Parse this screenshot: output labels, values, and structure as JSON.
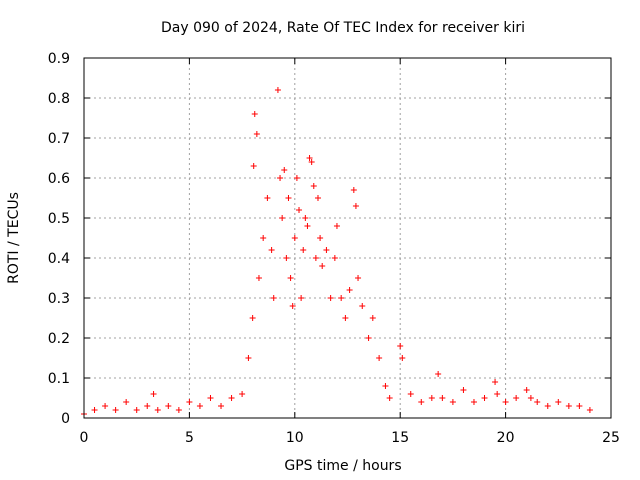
{
  "chart_data": {
    "type": "scatter",
    "title": "Day 090 of 2024, Rate Of TEC Index for receiver kiri",
    "xlabel": "GPS time / hours",
    "ylabel": "ROTI / TECUs",
    "xlim": [
      0,
      25
    ],
    "ylim": [
      0,
      0.9
    ],
    "x_ticks": [
      "0",
      "5",
      "10",
      "15",
      "20",
      "25"
    ],
    "y_ticks": [
      "0",
      "0.1",
      "0.2",
      "0.3",
      "0.4",
      "0.5",
      "0.6",
      "0.7",
      "0.8",
      "0.9"
    ],
    "grid": true,
    "marker": "+",
    "color": "#ff0000",
    "series": [
      {
        "x": [
          0.0,
          0.5,
          1.0,
          1.5,
          2.0,
          2.5,
          3.0,
          3.3,
          3.5,
          4.0,
          4.5,
          5.0,
          5.5,
          6.0,
          6.5,
          7.0,
          7.5,
          7.8,
          8.0,
          8.05,
          8.1,
          8.2,
          8.3,
          8.5,
          8.7,
          8.9,
          9.0,
          9.2,
          9.3,
          9.4,
          9.5,
          9.6,
          9.7,
          9.8,
          9.9,
          10.0,
          10.1,
          10.2,
          10.3,
          10.4,
          10.5,
          10.6,
          10.7,
          10.8,
          10.9,
          11.0,
          11.1,
          11.2,
          11.3,
          11.5,
          11.7,
          11.9,
          12.0,
          12.2,
          12.4,
          12.6,
          12.8,
          12.9,
          13.0,
          13.2,
          13.5,
          13.7,
          14.0,
          14.3,
          14.5,
          15.0,
          15.1,
          15.5,
          16.0,
          16.5,
          16.8,
          17.0,
          17.5,
          18.0,
          18.5,
          19.0,
          19.5,
          19.6,
          20.0,
          20.5,
          21.0,
          21.2,
          21.5,
          22.0,
          22.5,
          23.0,
          23.5,
          24.0
        ],
        "y": [
          0.01,
          0.02,
          0.03,
          0.02,
          0.04,
          0.02,
          0.03,
          0.06,
          0.02,
          0.03,
          0.02,
          0.04,
          0.03,
          0.05,
          0.03,
          0.05,
          0.06,
          0.15,
          0.25,
          0.63,
          0.76,
          0.71,
          0.35,
          0.45,
          0.55,
          0.42,
          0.3,
          0.82,
          0.6,
          0.5,
          0.62,
          0.4,
          0.55,
          0.35,
          0.28,
          0.45,
          0.6,
          0.52,
          0.3,
          0.42,
          0.5,
          0.48,
          0.65,
          0.64,
          0.58,
          0.4,
          0.55,
          0.45,
          0.38,
          0.42,
          0.3,
          0.4,
          0.48,
          0.3,
          0.25,
          0.32,
          0.57,
          0.53,
          0.35,
          0.28,
          0.2,
          0.25,
          0.15,
          0.08,
          0.05,
          0.18,
          0.15,
          0.06,
          0.04,
          0.05,
          0.11,
          0.05,
          0.04,
          0.07,
          0.04,
          0.05,
          0.09,
          0.06,
          0.04,
          0.05,
          0.07,
          0.05,
          0.04,
          0.03,
          0.04,
          0.03,
          0.03,
          0.02
        ]
      }
    ]
  }
}
